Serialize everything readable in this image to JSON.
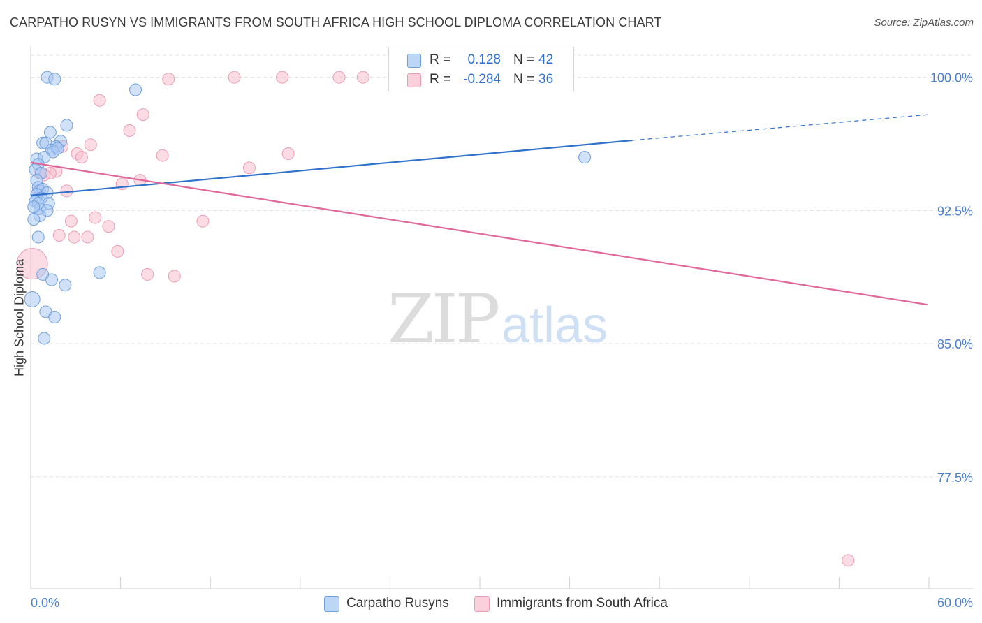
{
  "header": {
    "title": "CARPATHO RUSYN VS IMMIGRANTS FROM SOUTH AFRICA HIGH SCHOOL DIPLOMA CORRELATION CHART",
    "source": "Source: ZipAtlas.com"
  },
  "watermark": {
    "zip": "ZIP",
    "atlas": "atlas"
  },
  "colors": {
    "blue_fill": "#a9c9f2",
    "blue_stroke": "#6f9fdc",
    "blue_line": "#2f72cc",
    "pink_fill": "#f7bfd0",
    "pink_stroke": "#ec9db5",
    "pink_line": "#e0689a",
    "tick_text": "#4a7fd0",
    "grid": "#e3e3e3"
  },
  "legend_top": {
    "rows": [
      {
        "r_label": "R =",
        "r_value": "0.128",
        "n_label": "N =",
        "n_value": "42"
      },
      {
        "r_label": "R =",
        "r_value": "-0.284",
        "n_label": "N =",
        "n_value": "36"
      }
    ]
  },
  "legend_bottom": {
    "items": [
      {
        "label": "Carpatho Rusyns"
      },
      {
        "label": "Immigrants from South Africa"
      }
    ]
  },
  "chart_data": {
    "type": "scatter",
    "title": "CARPATHO RUSYN VS IMMIGRANTS FROM SOUTH AFRICA HIGH SCHOOL DIPLOMA CORRELATION CHART",
    "xlabel": "",
    "ylabel": "High School Diploma",
    "xlim": [
      0,
      60
    ],
    "ylim": [
      71.2,
      101.6
    ],
    "x_tick_labels": [
      "0.0%",
      "60.0%"
    ],
    "y_ticks": [
      77.5,
      85.0,
      92.5,
      100.0
    ],
    "y_tick_labels": [
      "77.5%",
      "85.0%",
      "92.5%",
      "100.0%"
    ],
    "grid": true,
    "legend_position": "top-center",
    "series": [
      {
        "name": "Carpatho Rusyns",
        "color": "#a9c9f2",
        "r": 0.128,
        "n": 42,
        "trend": {
          "x": [
            0,
            40.2
          ],
          "y": [
            93.35,
            96.45
          ],
          "dashed_to": [
            60,
            97.9
          ]
        },
        "points": [
          [
            1.1,
            100.0
          ],
          [
            1.6,
            99.9
          ],
          [
            7.0,
            99.3
          ],
          [
            2.4,
            97.3
          ],
          [
            1.3,
            96.9
          ],
          [
            2.0,
            96.4
          ],
          [
            0.8,
            96.3
          ],
          [
            1.0,
            96.3
          ],
          [
            1.7,
            96.1
          ],
          [
            1.4,
            95.9
          ],
          [
            1.5,
            95.8
          ],
          [
            0.4,
            95.4
          ],
          [
            0.9,
            95.5
          ],
          [
            0.5,
            95.1
          ],
          [
            0.3,
            94.8
          ],
          [
            0.7,
            94.6
          ],
          [
            0.4,
            94.2
          ],
          [
            0.5,
            93.8
          ],
          [
            0.6,
            93.6
          ],
          [
            0.8,
            93.7
          ],
          [
            1.1,
            93.5
          ],
          [
            0.4,
            93.4
          ],
          [
            0.7,
            93.2
          ],
          [
            0.3,
            93.0
          ],
          [
            0.5,
            92.9
          ],
          [
            1.2,
            92.9
          ],
          [
            0.6,
            92.6
          ],
          [
            1.1,
            92.5
          ],
          [
            0.6,
            92.2
          ],
          [
            0.2,
            92.0
          ],
          [
            0.5,
            91.0
          ],
          [
            0.8,
            88.9
          ],
          [
            1.4,
            88.6
          ],
          [
            2.3,
            88.3
          ],
          [
            4.6,
            89.0
          ],
          [
            37.0,
            95.5
          ],
          [
            0.1,
            87.5
          ],
          [
            1.0,
            86.8
          ],
          [
            1.6,
            86.5
          ],
          [
            0.9,
            85.3
          ],
          [
            0.2,
            92.7
          ],
          [
            1.8,
            96.0
          ]
        ]
      },
      {
        "name": "Immigrants from South Africa",
        "color": "#f7bfd0",
        "r": -0.284,
        "n": 36,
        "trend": {
          "x": [
            0,
            59.9
          ],
          "y": [
            95.2,
            87.2
          ]
        },
        "points": [
          [
            0.1,
            89.5
          ],
          [
            9.2,
            99.9
          ],
          [
            13.6,
            100.0
          ],
          [
            16.8,
            100.0
          ],
          [
            20.6,
            100.0
          ],
          [
            22.2,
            100.0
          ],
          [
            33.6,
            100.0
          ],
          [
            4.6,
            98.7
          ],
          [
            7.5,
            97.9
          ],
          [
            6.6,
            97.0
          ],
          [
            4.0,
            96.2
          ],
          [
            2.1,
            96.1
          ],
          [
            3.1,
            95.7
          ],
          [
            3.4,
            95.5
          ],
          [
            8.8,
            95.6
          ],
          [
            17.2,
            95.7
          ],
          [
            14.6,
            94.9
          ],
          [
            1.7,
            94.7
          ],
          [
            1.3,
            94.6
          ],
          [
            0.6,
            94.6
          ],
          [
            7.3,
            94.2
          ],
          [
            6.1,
            94.0
          ],
          [
            0.5,
            93.6
          ],
          [
            2.4,
            93.6
          ],
          [
            4.3,
            92.1
          ],
          [
            2.7,
            91.9
          ],
          [
            11.5,
            91.9
          ],
          [
            5.2,
            91.6
          ],
          [
            1.9,
            91.1
          ],
          [
            2.9,
            91.0
          ],
          [
            3.8,
            91.0
          ],
          [
            5.8,
            90.2
          ],
          [
            7.8,
            88.9
          ],
          [
            9.6,
            88.8
          ],
          [
            54.6,
            72.8
          ],
          [
            0.9,
            94.5
          ]
        ]
      }
    ]
  }
}
